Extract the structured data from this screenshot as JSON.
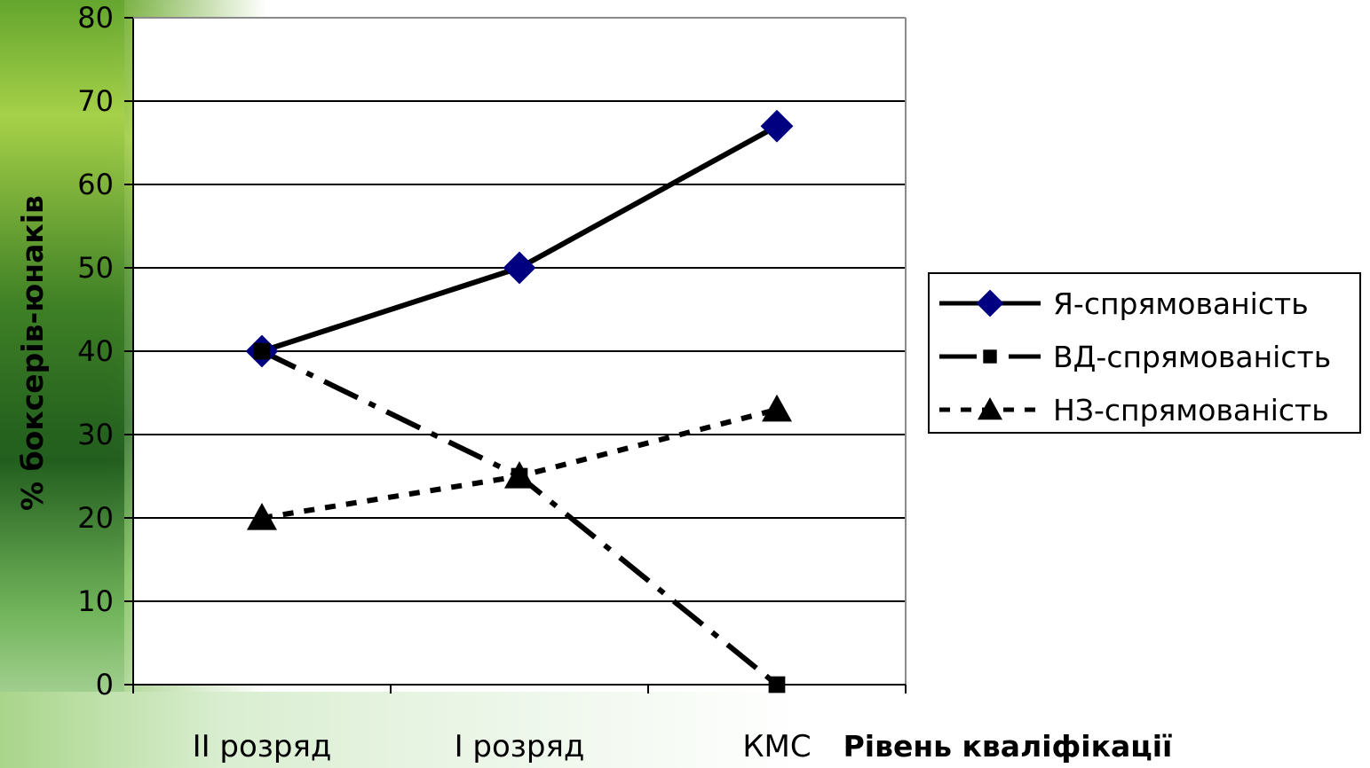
{
  "chart_data": {
    "type": "line",
    "categories": [
      "II розряд",
      "I розряд",
      "КМС"
    ],
    "series": [
      {
        "name": "Я-спрямованість",
        "values": [
          40,
          50,
          67
        ],
        "color": "#000080",
        "marker": "diamond",
        "line": "solid"
      },
      {
        "name": "ВД-спрямованість",
        "values": [
          40,
          25,
          0
        ],
        "color": "#000000",
        "marker": "square",
        "line": "dashdot"
      },
      {
        "name": "НЗ-спрямованість",
        "values": [
          20,
          25,
          33
        ],
        "color": "#000000",
        "marker": "triangle",
        "line": "dotted"
      }
    ],
    "ylabel": "% боксерів-юнаків",
    "xlabel": "Рівень кваліфікації",
    "ylim": [
      0,
      80
    ],
    "yticks": [
      0,
      10,
      20,
      30,
      40,
      50,
      60,
      70,
      80
    ],
    "grid": true,
    "legend": "right"
  }
}
